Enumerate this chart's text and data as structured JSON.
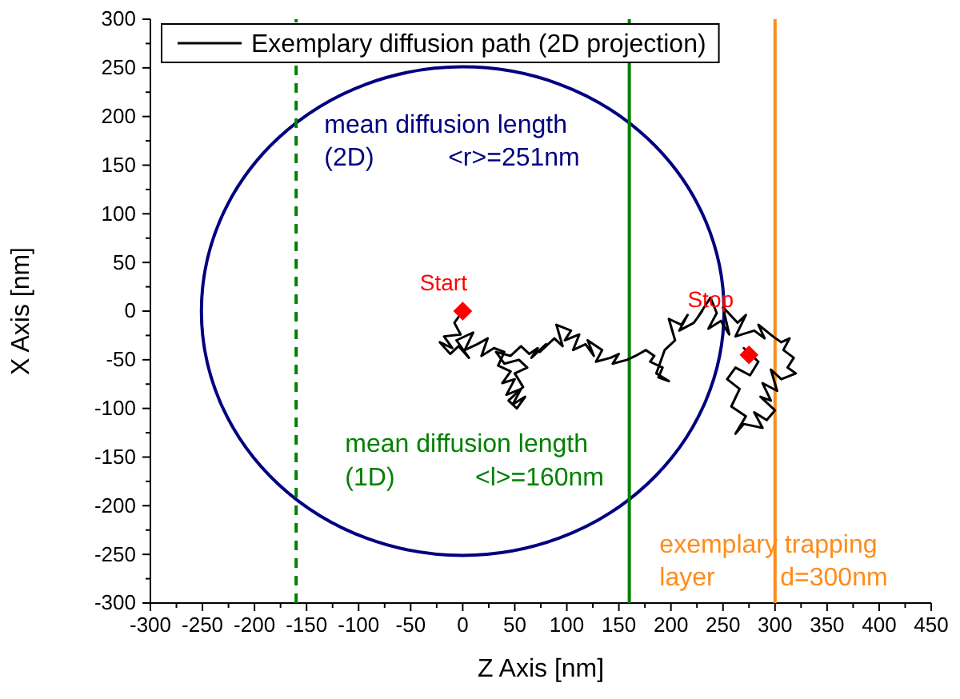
{
  "chart_data": {
    "type": "line",
    "xlabel": "Z Axis [nm]",
    "ylabel": "X Axis [nm]",
    "xlim": [
      -300,
      450
    ],
    "ylim": [
      -300,
      300
    ],
    "xticks": [
      -300,
      {
        "value": -275,
        "label": null
      },
      -250,
      {
        "value": -225,
        "label": null
      },
      -200,
      {
        "value": -175,
        "label": null
      },
      -150,
      {
        "value": -125,
        "label": null
      },
      -100,
      {
        "value": -75,
        "label": null
      },
      -50,
      {
        "value": -25,
        "label": null
      },
      0,
      {
        "value": 25,
        "label": null
      },
      50,
      {
        "value": 75,
        "label": null
      },
      100,
      {
        "value": 125,
        "label": null
      },
      150,
      {
        "value": 175,
        "label": null
      },
      200,
      {
        "value": 225,
        "label": null
      },
      250,
      {
        "value": 275,
        "label": null
      },
      300,
      {
        "value": 325,
        "label": null
      },
      350,
      {
        "value": 375,
        "label": null
      },
      400,
      {
        "value": 425,
        "label": null
      },
      450
    ],
    "yticks": [
      -300,
      {
        "value": -275,
        "label": null
      },
      -250,
      {
        "value": -225,
        "label": null
      },
      -200,
      {
        "value": -175,
        "label": null
      },
      -150,
      {
        "value": -125,
        "label": null
      },
      -100,
      {
        "value": -75,
        "label": null
      },
      -50,
      {
        "value": -25,
        "label": null
      },
      0,
      {
        "value": 25,
        "label": null
      },
      50,
      {
        "value": 75,
        "label": null
      },
      100,
      {
        "value": 125,
        "label": null
      },
      150,
      {
        "value": 175,
        "label": null
      },
      200,
      {
        "value": 225,
        "label": null
      },
      250,
      {
        "value": 275,
        "label": null
      },
      300
    ],
    "grid": false,
    "legend": "top left",
    "series": [
      {
        "name": "Exemplary diffusion path (2D projection)",
        "color": "#000000",
        "marker": "none",
        "x": [
          0,
          -8,
          -2,
          -18,
          -10,
          -22,
          -12,
          -4,
          6,
          -6,
          10,
          2,
          14,
          24,
          18,
          30,
          40,
          34,
          46,
          38,
          50,
          42,
          56,
          48,
          60,
          52,
          44,
          58,
          50,
          62,
          54,
          40,
          32,
          46,
          56,
          64,
          72,
          66,
          80,
          74,
          88,
          96,
          90,
          104,
          98,
          112,
          106,
          118,
          126,
          120,
          134,
          128,
          142,
          150,
          144,
          158,
          166,
          176,
          184,
          180,
          192,
          188,
          198,
          186,
          194,
          204,
          198,
          210,
          216,
          208,
          222,
          230,
          226,
          238,
          244,
          236,
          248,
          256,
          250,
          264,
          272,
          262,
          280,
          290,
          284,
          298,
          306,
          314,
          308,
          318,
          312,
          320,
          306,
          296,
          302,
          288,
          296,
          286,
          300,
          292,
          280,
          288,
          270,
          262,
          272,
          258,
          266,
          254,
          262,
          276,
          284,
          270,
          280,
          275
        ],
        "values": [
          0,
          -12,
          -24,
          -26,
          -38,
          -32,
          -44,
          -36,
          -48,
          -30,
          -22,
          -40,
          -34,
          -28,
          -46,
          -38,
          -42,
          -56,
          -62,
          -74,
          -70,
          -86,
          -80,
          -96,
          -88,
          -100,
          -92,
          -78,
          -64,
          -58,
          -50,
          -54,
          -42,
          -46,
          -36,
          -44,
          -38,
          -48,
          -34,
          -42,
          -28,
          -36,
          -14,
          -20,
          -30,
          -24,
          -40,
          -34,
          -46,
          -30,
          -40,
          -52,
          -48,
          -44,
          -54,
          -50,
          -46,
          -40,
          -46,
          -52,
          -58,
          -68,
          -72,
          -64,
          -40,
          -30,
          -8,
          -14,
          -4,
          -20,
          -12,
          0,
          -6,
          14,
          -2,
          -18,
          -10,
          -24,
          4,
          -12,
          -4,
          -26,
          -20,
          -28,
          -14,
          -26,
          -32,
          -28,
          -40,
          -48,
          -58,
          -64,
          -70,
          -60,
          -82,
          -74,
          -92,
          -88,
          -102,
          -112,
          -104,
          -120,
          -116,
          -126,
          -108,
          -98,
          -80,
          -70,
          -58,
          -66,
          -52,
          -38,
          -48,
          -45
        ]
      },
      {
        "type": "scatter",
        "color": "#ff0000",
        "marker": "diamond",
        "x": [
          0,
          275
        ],
        "values": [
          0,
          -45
        ]
      }
    ],
    "ref_lines": [
      {
        "axis": "x",
        "value": -160,
        "color": "#008000",
        "line_style": "dashed"
      },
      {
        "axis": "x",
        "value": 160,
        "color": "#008000",
        "line_style": "solid"
      },
      {
        "axis": "x",
        "value": 300,
        "color": "#ff8c1a",
        "line_style": "solid"
      }
    ],
    "annotations": [
      "mean diffusion length",
      "(2D)",
      "<r>=251nm",
      "mean diffusion length",
      "(1D)",
      "<l>=160nm",
      "exemplary trapping",
      "layer",
      "d=300nm",
      {
        "text": "Start",
        "x": 0,
        "y": 0
      },
      {
        "text": "Stop",
        "x": 275,
        "y": -45
      }
    ]
  }
}
